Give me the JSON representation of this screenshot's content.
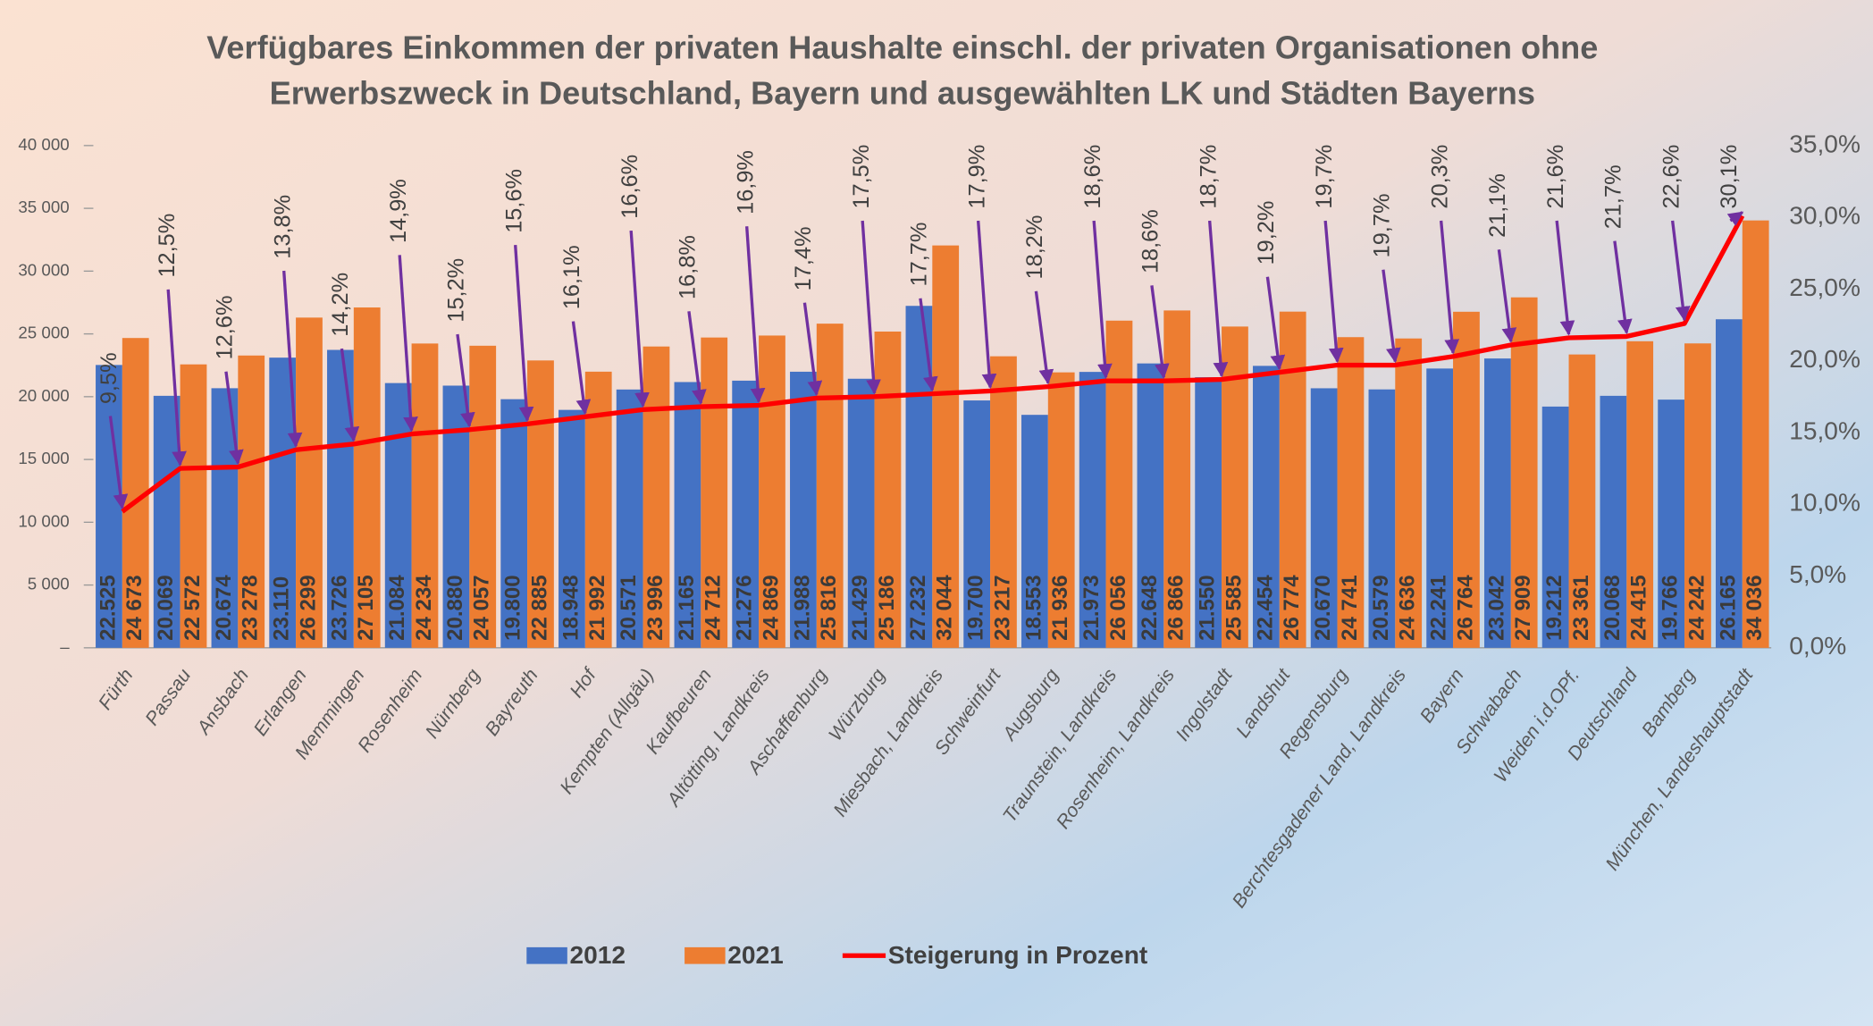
{
  "chart_data": {
    "type": "bar_line",
    "title": [
      "Verfügbares Einkommen der privaten Haushalte einschl. der privaten Organisationen ohne",
      "Erwerbszweck in Deutschland, Bayern und ausgewählten LK und Städten Bayerns"
    ],
    "categories": [
      "Fürth",
      "Passau",
      "Ansbach",
      "Erlangen",
      "Memmingen",
      "Rosenheim",
      "Nürnberg",
      "Bayreuth",
      "Hof",
      "Kempten (Allgäu)",
      "Kaufbeuren",
      "Altötting, Landkreis",
      "Aschaffenburg",
      "Würzburg",
      "Miesbach, Landkreis",
      "Schweinfurt",
      "Augsburg",
      "Traunstein, Landkreis",
      "Rosenheim, Landkreis",
      "Ingolstadt",
      "Landshut",
      "Regensburg",
      "Berchtesgadener Land, Landkreis",
      "Bayern",
      "Schwabach",
      "Weiden i.d.OPf.",
      "Deutschland",
      "Bamberg",
      "München, Landeshauptstadt"
    ],
    "series": [
      {
        "name": "2012",
        "color": "#4472c4",
        "values": [
          22525,
          20069,
          20674,
          23110,
          23726,
          21084,
          20880,
          19800,
          18948,
          20571,
          21165,
          21276,
          21988,
          21429,
          27232,
          19700,
          18553,
          21973,
          22648,
          21550,
          22454,
          20670,
          20579,
          22241,
          23042,
          19212,
          20068,
          19766,
          26165
        ],
        "value_labels": [
          "22.525",
          "20.069",
          "20.674",
          "23.110",
          "23.726",
          "21.084",
          "20.880",
          "19.800",
          "18.948",
          "20.571",
          "21.165",
          "21.276",
          "21.988",
          "21.429",
          "27.232",
          "19.700",
          "18.553",
          "21.973",
          "22.648",
          "21.550",
          "22.454",
          "20.670",
          "20.579",
          "22.241",
          "23.042",
          "19.212",
          "20.068",
          "19.766",
          "26.165"
        ]
      },
      {
        "name": "2021",
        "color": "#ed7d31",
        "values": [
          24673,
          22572,
          23278,
          26299,
          27105,
          24234,
          24057,
          22885,
          21992,
          23996,
          24712,
          24869,
          25816,
          25186,
          32044,
          23217,
          21936,
          26056,
          26866,
          25585,
          26774,
          24741,
          24636,
          26764,
          27909,
          23361,
          24415,
          24242,
          34036
        ],
        "value_labels": [
          "24 673",
          "22 572",
          "23 278",
          "26 299",
          "27 105",
          "24 234",
          "24 057",
          "22 885",
          "21 992",
          "23 996",
          "24 712",
          "24 869",
          "25 816",
          "25 186",
          "32 044",
          "23 217",
          "21 936",
          "26 056",
          "26 866",
          "25 585",
          "26 774",
          "24 741",
          "24 636",
          "26 764",
          "27 909",
          "23 361",
          "24 415",
          "24 242",
          "34 036"
        ]
      },
      {
        "name": "Steigerung in Prozent",
        "color": "#ff0000",
        "axis": "y2",
        "kind": "line",
        "values": [
          9.5,
          12.5,
          12.6,
          13.8,
          14.2,
          14.9,
          15.2,
          15.6,
          16.1,
          16.6,
          16.8,
          16.9,
          17.4,
          17.5,
          17.7,
          17.9,
          18.2,
          18.6,
          18.6,
          18.7,
          19.2,
          19.7,
          19.7,
          20.3,
          21.1,
          21.6,
          21.7,
          22.6,
          30.1
        ],
        "value_labels": [
          "9,5%",
          "12,5%",
          "12,6%",
          "13,8%",
          "14,2%",
          "14,9%",
          "15,2%",
          "15,6%",
          "16,1%",
          "16,6%",
          "16,8%",
          "16,9%",
          "17,4%",
          "17,5%",
          "17,7%",
          "17,9%",
          "18,2%",
          "18,6%",
          "18,6%",
          "18,7%",
          "19,2%",
          "19,7%",
          "19,7%",
          "20,3%",
          "21,1%",
          "21,6%",
          "21,7%",
          "22,6%",
          "30,1%"
        ]
      }
    ],
    "ylim": [
      0,
      40000
    ],
    "yticks": [
      {
        "value": 0,
        "label": "–"
      },
      {
        "value": 5000,
        "label": "5 000"
      },
      {
        "value": 10000,
        "label": "10 000"
      },
      {
        "value": 15000,
        "label": "15 000"
      },
      {
        "value": 20000,
        "label": "20 000"
      },
      {
        "value": 25000,
        "label": "25 000"
      },
      {
        "value": 30000,
        "label": "30 000"
      },
      {
        "value": 35000,
        "label": "35 000"
      },
      {
        "value": 40000,
        "label": "40 000"
      }
    ],
    "y2lim": [
      0,
      35
    ],
    "y2ticks": [
      {
        "value": 0,
        "label": "0,0%"
      },
      {
        "value": 5,
        "label": "5,0%"
      },
      {
        "value": 10,
        "label": "10,0%"
      },
      {
        "value": 15,
        "label": "15,0%"
      },
      {
        "value": 20,
        "label": "20,0%"
      },
      {
        "value": 25,
        "label": "25,0%"
      },
      {
        "value": 30,
        "label": "30,0%"
      },
      {
        "value": 35,
        "label": "35,0%"
      }
    ],
    "legend": "bottom"
  }
}
